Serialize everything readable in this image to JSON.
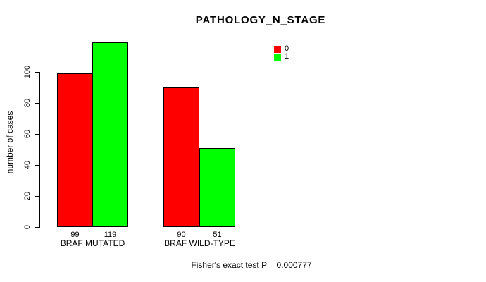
{
  "chart_data": {
    "type": "bar",
    "title": "PATHOLOGY_N_STAGE",
    "ylabel": "number of cases",
    "xlabel": "",
    "categories": [
      "BRAF MUTATED",
      "BRAF WILD-TYPE"
    ],
    "series": [
      {
        "name": "0",
        "color": "#FF0000",
        "values": [
          99,
          90
        ]
      },
      {
        "name": "1",
        "color": "#00FF00",
        "values": [
          119,
          51
        ]
      }
    ],
    "yticks": [
      0,
      20,
      40,
      60,
      80,
      100
    ],
    "ylim": [
      0,
      119
    ],
    "grid": false,
    "show_bar_values": true,
    "legend_position": "top-right",
    "annotation": "Fisher's exact test P = 0.000777"
  },
  "colors": {
    "background": "#FFFFFF",
    "axis": "#000000",
    "series0": "#FF0000",
    "series1": "#00FF00"
  }
}
